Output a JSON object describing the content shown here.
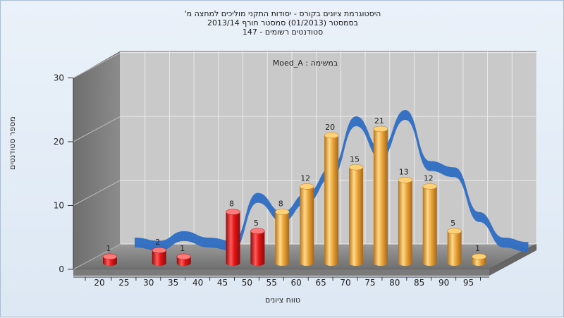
{
  "chart_data": {
    "type": "bar",
    "title_lines": [
      "היסטוגרמת ציונים בקורס - יסודות התקני מוליכים למחצה מ'",
      "בסמסטר  (01/2013)  סמסטר חורף 2013/14",
      "סטודנטים רשומים - 147"
    ],
    "annotation": "במשימה : Moed_A",
    "xlabel": "טווח ציונים",
    "ylabel": "מספר סטודנטים",
    "categories": [
      "20",
      "25",
      "30",
      "35",
      "40",
      "45",
      "50",
      "55",
      "60",
      "65",
      "70",
      "75",
      "80",
      "85",
      "90",
      "95"
    ],
    "values": [
      1,
      null,
      2,
      1,
      null,
      8,
      5,
      8,
      12,
      20,
      15,
      21,
      13,
      12,
      5,
      1
    ],
    "bar_colors": [
      "#e01515",
      "#e01515",
      "#e01515",
      "#e01515",
      "#e01515",
      "#e01515",
      "#e01515",
      "#e9a63c",
      "#e9a63c",
      "#e9a63c",
      "#e9a63c",
      "#e9a63c",
      "#e9a63c",
      "#e9a63c",
      "#e9a63c",
      "#e9a63c"
    ],
    "trend_color": "#2f6ec2",
    "yticks": [
      0,
      10,
      20,
      30
    ],
    "ylim": [
      0,
      30
    ],
    "grid": true
  }
}
